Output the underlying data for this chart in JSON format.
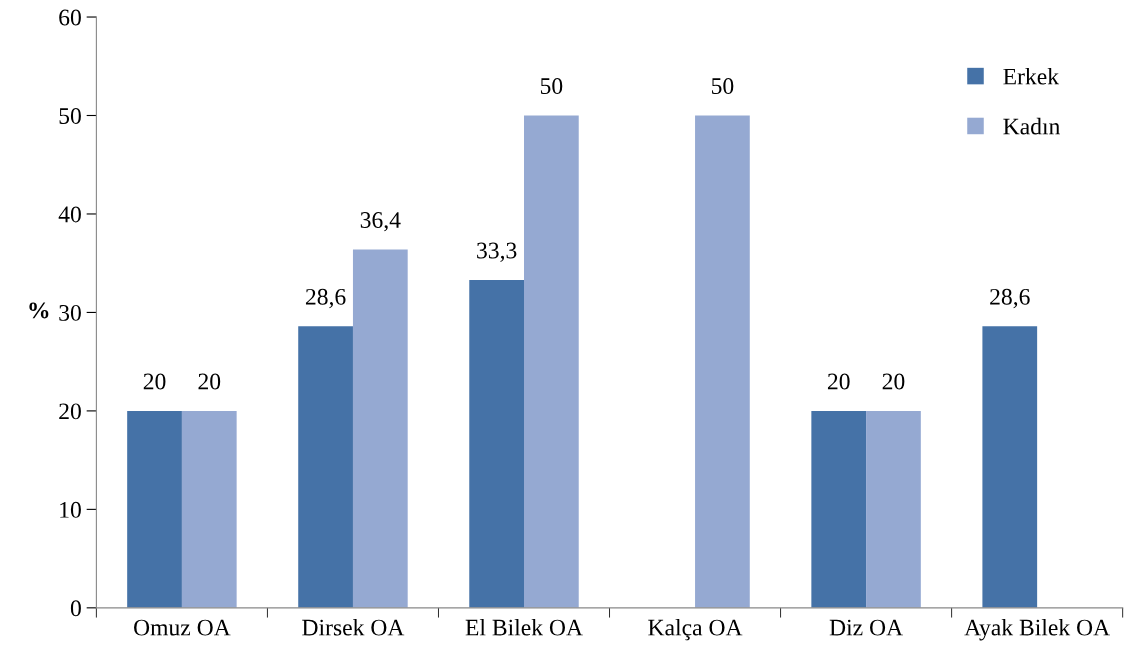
{
  "chart_data": {
    "type": "bar",
    "ylabel": "%",
    "categories": [
      "Omuz OA",
      "Dirsek OA",
      "El Bilek OA",
      "Kalça OA",
      "Diz OA",
      "Ayak Bilek OA"
    ],
    "series": [
      {
        "name": "Erkek",
        "color": "#4572a7",
        "values": [
          20,
          28.6,
          33.3,
          null,
          20,
          28.6
        ],
        "value_labels": [
          "20",
          "28,6",
          "33,3",
          null,
          "20",
          "28,6"
        ]
      },
      {
        "name": "Kadın",
        "color": "#95a9d2",
        "values": [
          20,
          36.4,
          50,
          50,
          20,
          null
        ],
        "value_labels": [
          "20",
          "36,4",
          "50",
          "50",
          "20",
          null
        ]
      }
    ],
    "ylim": [
      0,
      60
    ],
    "yticks": [
      0,
      10,
      20,
      30,
      40,
      50,
      60
    ],
    "grid": false,
    "legend": "top right"
  }
}
